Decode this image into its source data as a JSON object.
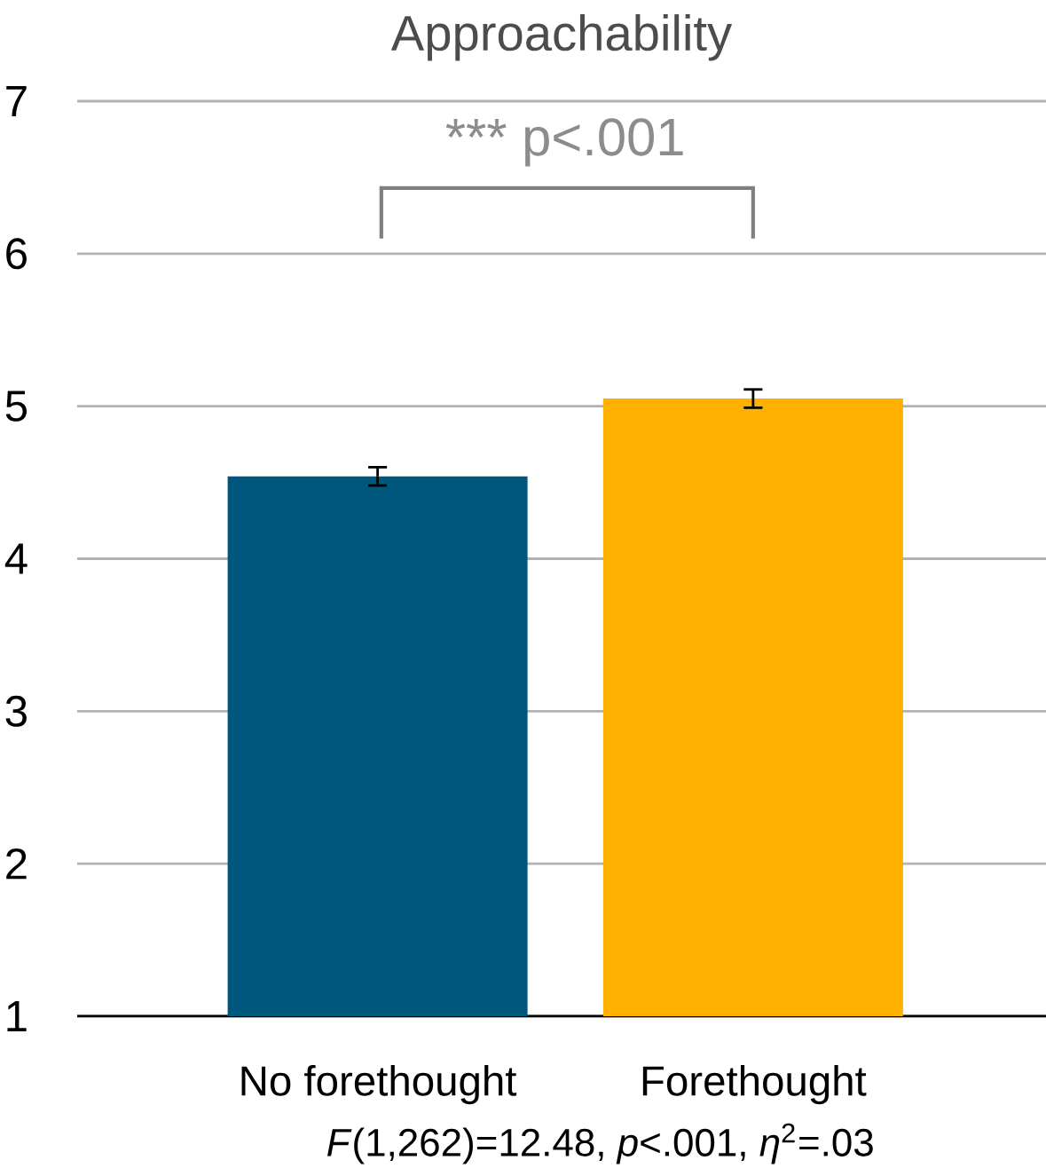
{
  "chart_data": {
    "type": "bar",
    "title": "Approachability",
    "categories": [
      "No forethought",
      "Forethought"
    ],
    "values": [
      4.54,
      5.05
    ],
    "errors": [
      0.06,
      0.06
    ],
    "colors": [
      "#00577d",
      "#ffb000"
    ],
    "ylim": [
      1,
      7
    ],
    "yticks": [
      1,
      2,
      3,
      4,
      5,
      6,
      7
    ],
    "grid": "y",
    "annotations": [
      "*** p<.001",
      "*F*(1,262)=12.48, *p*<.001, *η*$^{2}$=.03"
    ]
  }
}
